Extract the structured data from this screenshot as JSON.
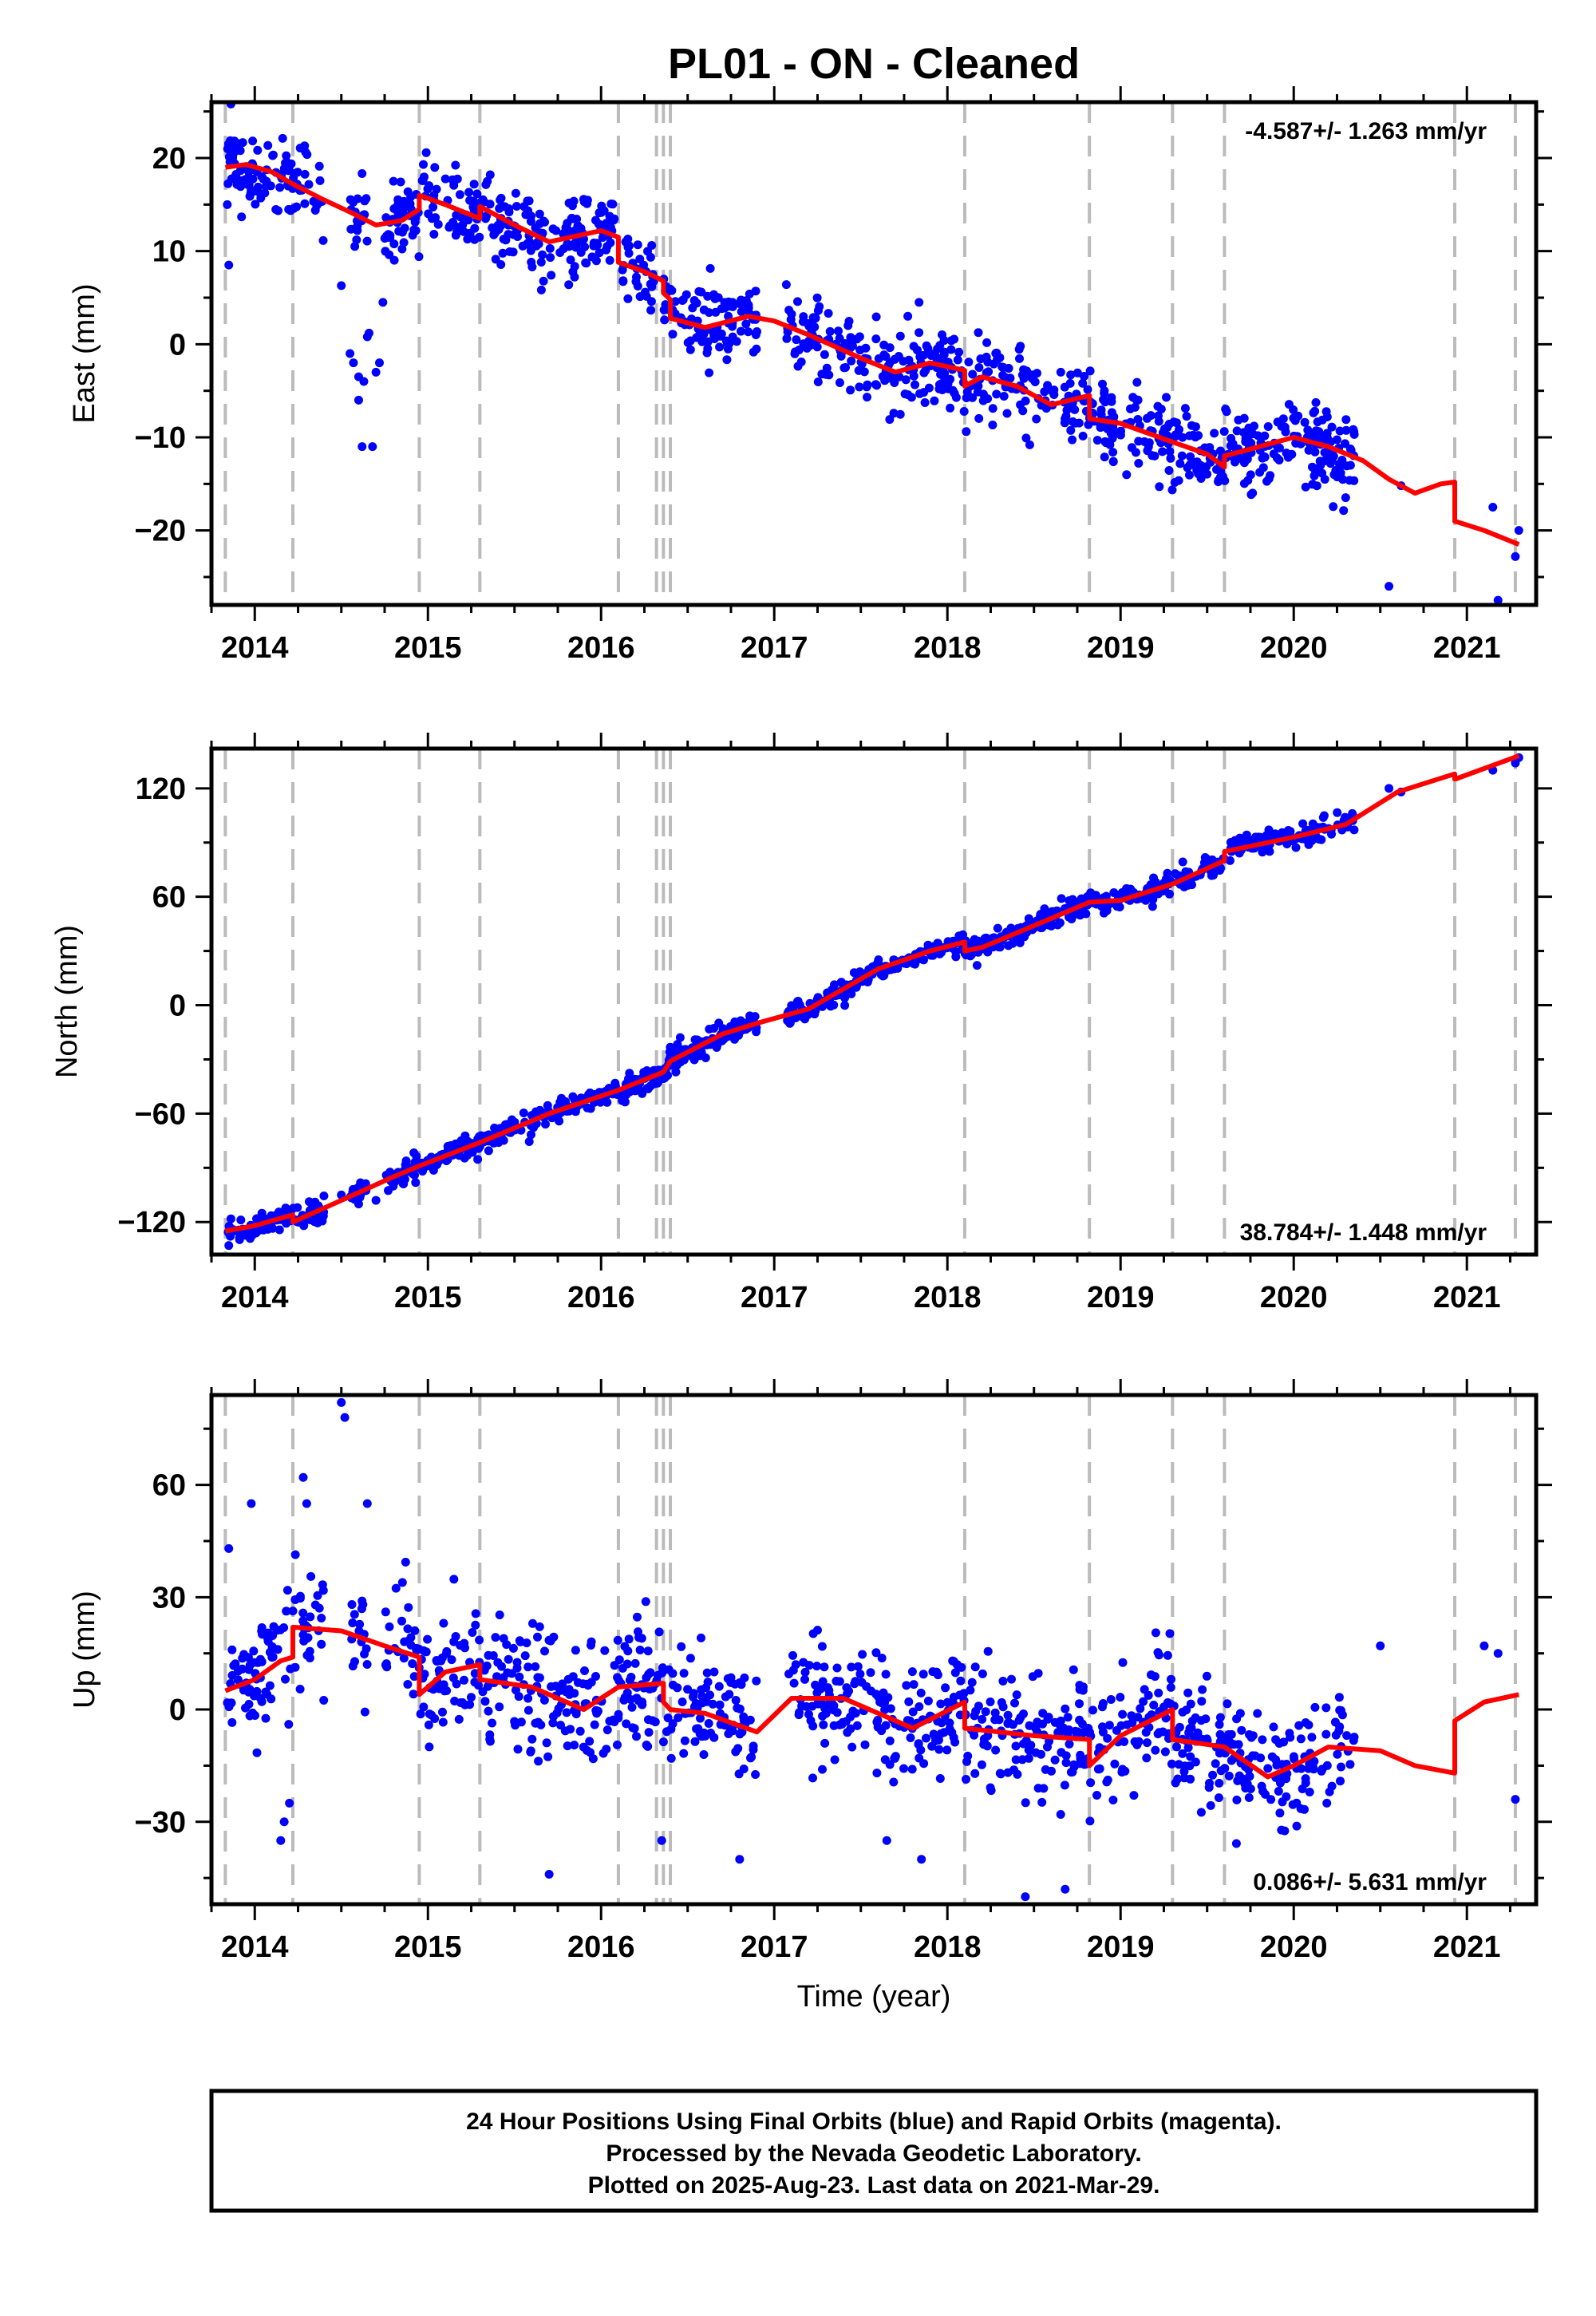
{
  "title": "PL01  - ON - Cleaned",
  "footer": {
    "line1": "24 Hour Positions Using Final Orbits (blue) and Rapid Orbits (magenta).",
    "line2": "Processed by the Nevada Geodetic Laboratory.",
    "line3": "Plotted on 2025-Aug-23. Last data on 2021-Mar-29."
  },
  "colors": {
    "points": "#0000ff",
    "model": "#ff0000",
    "breaks": "#bbbbbb",
    "axes": "#000000"
  },
  "chart_data": [
    {
      "type": "scatter",
      "ylabel": "East (mm)",
      "rate": "-4.587+/- 1.263 mm/yr",
      "rate_position": "top-right",
      "xlim": [
        2013.75,
        2021.4
      ],
      "ylim": [
        -28,
        26
      ],
      "xticks": [
        2014,
        2015,
        2016,
        2017,
        2018,
        2019,
        2020,
        2021
      ],
      "xtick_labels": [
        "2014",
        "2015",
        "2016",
        "2017",
        "2018",
        "2019",
        "2020",
        "2021"
      ],
      "yticks": [
        -20,
        -10,
        0,
        10,
        20
      ],
      "ytick_labels": [
        "−20",
        "−10",
        "0",
        "10",
        "20"
      ],
      "breaks": [
        2013.83,
        2014.22,
        2014.95,
        2015.3,
        2016.1,
        2016.32,
        2016.36,
        2016.4,
        2018.1,
        2018.82,
        2019.3,
        2019.6,
        2020.93,
        2021.28
      ],
      "model": [
        [
          2013.83,
          19
        ],
        [
          2013.95,
          19.3
        ],
        [
          2014.1,
          18.5
        ],
        [
          2014.22,
          17.2
        ],
        [
          2014.4,
          15.5
        ],
        [
          2014.55,
          14.2
        ],
        [
          2014.7,
          12.8
        ],
        [
          2014.85,
          13.3
        ],
        [
          2014.95,
          14.5
        ],
        [
          2014.95,
          16
        ],
        [
          2015.1,
          15
        ],
        [
          2015.3,
          13.5
        ],
        [
          2015.3,
          14.8
        ],
        [
          2015.5,
          12.8
        ],
        [
          2015.7,
          11
        ],
        [
          2015.9,
          11.8
        ],
        [
          2016.0,
          12.2
        ],
        [
          2016.1,
          11.5
        ],
        [
          2016.1,
          8.8
        ],
        [
          2016.25,
          7.8
        ],
        [
          2016.36,
          6.8
        ],
        [
          2016.36,
          5.5
        ],
        [
          2016.4,
          4.8
        ],
        [
          2016.4,
          2.8
        ],
        [
          2016.6,
          1.8
        ],
        [
          2016.85,
          3
        ],
        [
          2017.0,
          2.5
        ],
        [
          2017.2,
          1
        ],
        [
          2017.5,
          -1.5
        ],
        [
          2017.7,
          -3
        ],
        [
          2017.9,
          -2
        ],
        [
          2018.1,
          -2.8
        ],
        [
          2018.1,
          -4.5
        ],
        [
          2018.2,
          -3.5
        ],
        [
          2018.4,
          -4.5
        ],
        [
          2018.6,
          -6.5
        ],
        [
          2018.82,
          -5.5
        ],
        [
          2018.82,
          -8
        ],
        [
          2019.0,
          -8.5
        ],
        [
          2019.3,
          -10.5
        ],
        [
          2019.5,
          -11.8
        ],
        [
          2019.6,
          -13.2
        ],
        [
          2019.6,
          -12
        ],
        [
          2019.8,
          -11
        ],
        [
          2020.0,
          -10
        ],
        [
          2020.2,
          -11
        ],
        [
          2020.4,
          -12.5
        ],
        [
          2020.55,
          -14.5
        ],
        [
          2020.7,
          -16
        ],
        [
          2020.85,
          -15
        ],
        [
          2020.93,
          -14.8
        ],
        [
          2020.93,
          -19
        ],
        [
          2021.1,
          -20
        ],
        [
          2021.3,
          -21.5
        ]
      ],
      "segments": [
        [
          2013.83,
          2014.4
        ],
        [
          2014.55,
          2014.65
        ],
        [
          2014.75,
          2016.9
        ],
        [
          2017.07,
          2020.35
        ]
      ],
      "sparse": [
        [
          2013.85,
          8.5
        ],
        [
          2014.5,
          6.3
        ],
        [
          2014.55,
          -1
        ],
        [
          2014.57,
          -2
        ],
        [
          2014.6,
          -3.5
        ],
        [
          2014.6,
          -6
        ],
        [
          2014.62,
          -11
        ],
        [
          2014.63,
          -4
        ],
        [
          2014.65,
          0.8
        ],
        [
          2014.66,
          1.2
        ],
        [
          2014.68,
          -11
        ],
        [
          2014.7,
          -3
        ],
        [
          2014.72,
          -2
        ],
        [
          2014.74,
          4.5
        ],
        [
          2020.55,
          -26
        ],
        [
          2020.62,
          -15.2
        ],
        [
          2021.15,
          -17.5
        ],
        [
          2021.18,
          -27.5
        ],
        [
          2021.28,
          -22.8
        ],
        [
          2021.3,
          -20
        ]
      ],
      "noise": 2.2,
      "density": 180,
      "seed": 11
    },
    {
      "type": "scatter",
      "ylabel": "North (mm)",
      "rate": "38.784+/- 1.448 mm/yr",
      "rate_position": "bottom-right",
      "xlim": [
        2013.75,
        2021.4
      ],
      "ylim": [
        -138,
        142
      ],
      "xticks": [
        2014,
        2015,
        2016,
        2017,
        2018,
        2019,
        2020,
        2021
      ],
      "xtick_labels": [
        "2014",
        "2015",
        "2016",
        "2017",
        "2018",
        "2019",
        "2020",
        "2021"
      ],
      "yticks": [
        -120,
        -60,
        0,
        60,
        120
      ],
      "ytick_labels": [
        "−120",
        "−60",
        "0",
        "60",
        "120"
      ],
      "breaks": [
        2013.83,
        2014.22,
        2014.95,
        2015.3,
        2016.1,
        2016.32,
        2016.36,
        2016.4,
        2018.1,
        2018.82,
        2019.3,
        2019.6,
        2020.93,
        2021.28
      ],
      "model": [
        [
          2013.83,
          -125
        ],
        [
          2014.0,
          -122
        ],
        [
          2014.22,
          -116
        ],
        [
          2014.22,
          -120
        ],
        [
          2014.5,
          -108
        ],
        [
          2014.8,
          -95
        ],
        [
          2014.95,
          -89
        ],
        [
          2015.3,
          -76
        ],
        [
          2015.7,
          -60
        ],
        [
          2016.1,
          -47
        ],
        [
          2016.36,
          -37
        ],
        [
          2016.4,
          -31
        ],
        [
          2016.7,
          -16
        ],
        [
          2016.9,
          -10
        ],
        [
          2017.2,
          -2
        ],
        [
          2017.6,
          20
        ],
        [
          2017.9,
          30
        ],
        [
          2018.1,
          35
        ],
        [
          2018.1,
          30
        ],
        [
          2018.2,
          32
        ],
        [
          2018.5,
          44
        ],
        [
          2018.82,
          57
        ],
        [
          2019.0,
          58
        ],
        [
          2019.3,
          67
        ],
        [
          2019.6,
          80
        ],
        [
          2019.6,
          85
        ],
        [
          2020.0,
          93
        ],
        [
          2020.3,
          100
        ],
        [
          2020.6,
          118
        ],
        [
          2020.93,
          128
        ],
        [
          2020.93,
          125
        ],
        [
          2021.3,
          138
        ]
      ],
      "segments": [
        [
          2013.83,
          2014.4
        ],
        [
          2014.55,
          2014.65
        ],
        [
          2014.75,
          2016.9
        ],
        [
          2017.07,
          2020.35
        ]
      ],
      "sparse": [
        [
          2013.85,
          -133
        ],
        [
          2014.5,
          -105
        ],
        [
          2014.6,
          -110
        ],
        [
          2014.7,
          -108
        ],
        [
          2020.55,
          120
        ],
        [
          2020.62,
          118
        ],
        [
          2021.15,
          130
        ],
        [
          2021.28,
          134
        ],
        [
          2021.3,
          137
        ]
      ],
      "noise": 3,
      "density": 180,
      "seed": 23
    },
    {
      "type": "scatter",
      "ylabel": "Up (mm)",
      "xlabel": "Time (year)",
      "rate": "0.086+/- 5.631 mm/yr",
      "rate_position": "bottom-right",
      "xlim": [
        2013.75,
        2021.4
      ],
      "ylim": [
        -52,
        84
      ],
      "xticks": [
        2014,
        2015,
        2016,
        2017,
        2018,
        2019,
        2020,
        2021
      ],
      "xtick_labels": [
        "2014",
        "2015",
        "2016",
        "2017",
        "2018",
        "2019",
        "2020",
        "2021"
      ],
      "yticks": [
        -30,
        0,
        30,
        60
      ],
      "ytick_labels": [
        "−30",
        "0",
        "30",
        "60"
      ],
      "breaks": [
        2013.83,
        2014.22,
        2014.95,
        2015.3,
        2016.1,
        2016.32,
        2016.36,
        2016.4,
        2018.1,
        2018.82,
        2019.3,
        2019.6,
        2020.93,
        2021.28
      ],
      "model": [
        [
          2013.83,
          5
        ],
        [
          2014.0,
          8
        ],
        [
          2014.15,
          13
        ],
        [
          2014.22,
          14
        ],
        [
          2014.22,
          22
        ],
        [
          2014.5,
          21
        ],
        [
          2014.75,
          17
        ],
        [
          2014.95,
          14
        ],
        [
          2014.95,
          4
        ],
        [
          2015.1,
          10
        ],
        [
          2015.3,
          12
        ],
        [
          2015.3,
          8
        ],
        [
          2015.6,
          6
        ],
        [
          2015.9,
          0
        ],
        [
          2016.1,
          6
        ],
        [
          2016.36,
          7
        ],
        [
          2016.36,
          2
        ],
        [
          2016.4,
          0
        ],
        [
          2016.6,
          -1
        ],
        [
          2016.9,
          -6
        ],
        [
          2017.1,
          3
        ],
        [
          2017.4,
          3
        ],
        [
          2017.8,
          -5
        ],
        [
          2018.1,
          2
        ],
        [
          2018.1,
          -5
        ],
        [
          2018.5,
          -7
        ],
        [
          2018.82,
          -8
        ],
        [
          2018.82,
          -15
        ],
        [
          2019.0,
          -7
        ],
        [
          2019.3,
          0
        ],
        [
          2019.3,
          -8
        ],
        [
          2019.6,
          -10
        ],
        [
          2019.85,
          -18
        ],
        [
          2020.0,
          -15
        ],
        [
          2020.2,
          -10
        ],
        [
          2020.5,
          -11
        ],
        [
          2020.7,
          -15
        ],
        [
          2020.93,
          -17
        ],
        [
          2020.93,
          -3
        ],
        [
          2021.1,
          2
        ],
        [
          2021.3,
          4
        ]
      ],
      "segments": [
        [
          2013.83,
          2014.4
        ],
        [
          2014.55,
          2014.65
        ],
        [
          2014.75,
          2016.9
        ],
        [
          2017.07,
          2020.35
        ]
      ],
      "sparse": [
        [
          2013.85,
          43
        ],
        [
          2013.98,
          55
        ],
        [
          2014.15,
          -35
        ],
        [
          2014.17,
          -30
        ],
        [
          2014.2,
          -25
        ],
        [
          2014.28,
          62
        ],
        [
          2014.3,
          55
        ],
        [
          2014.5,
          82
        ],
        [
          2014.52,
          78
        ],
        [
          2014.65,
          55
        ],
        [
          2015.7,
          -44
        ],
        [
          2016.35,
          -35
        ],
        [
          2016.8,
          -40
        ],
        [
          2017.65,
          -35
        ],
        [
          2017.85,
          -40
        ],
        [
          2018.45,
          -50
        ],
        [
          2018.68,
          -48
        ],
        [
          2020.5,
          17
        ],
        [
          2021.1,
          17
        ],
        [
          2021.18,
          15
        ],
        [
          2021.28,
          -24
        ]
      ],
      "noise": 8,
      "density": 170,
      "seed": 37
    }
  ]
}
